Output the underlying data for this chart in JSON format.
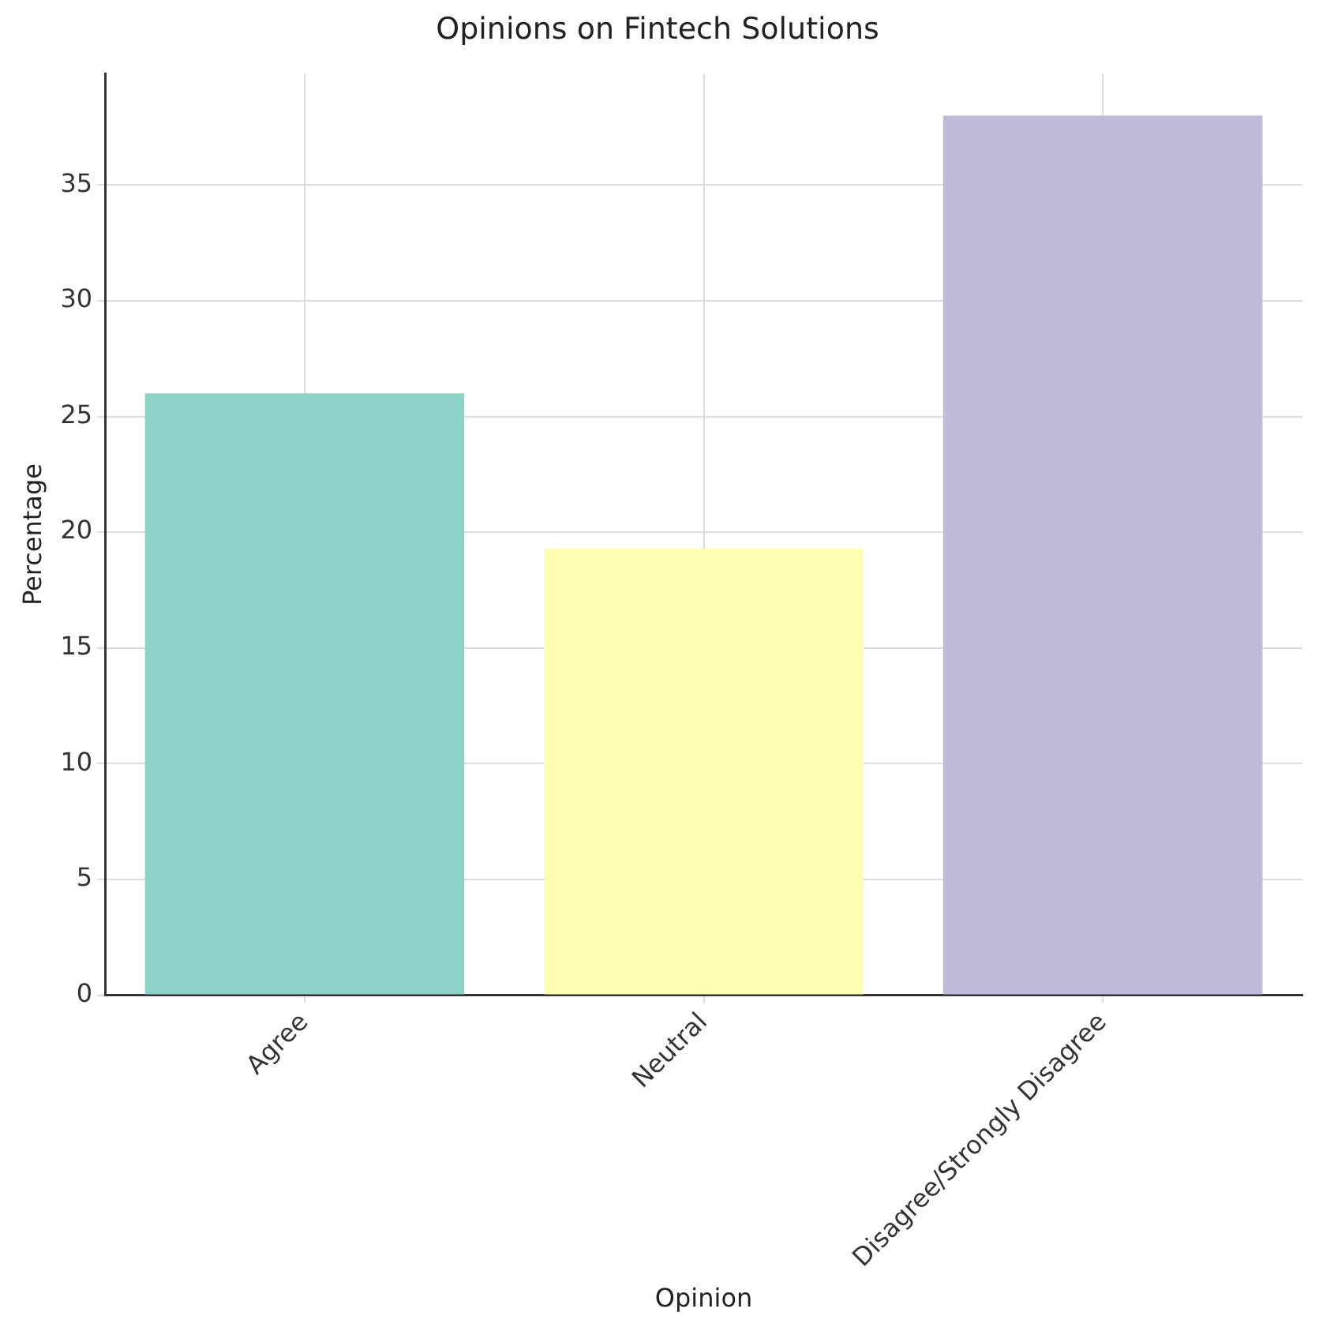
{
  "chart_data": {
    "type": "bar",
    "title": "Opinions on Fintech Solutions",
    "xlabel": "Opinion",
    "ylabel": "Percentage",
    "categories": [
      "Agree",
      "Neutral",
      "Disagree/Strongly Disagree"
    ],
    "values": [
      26,
      19.3,
      38
    ],
    "colors": [
      "#8dd3c7",
      "#ffffb3",
      "#bebada"
    ],
    "ylim": [
      0,
      39.8
    ],
    "yticks": [
      0,
      5,
      10,
      15,
      20,
      25,
      30,
      35
    ],
    "grid": true
  }
}
